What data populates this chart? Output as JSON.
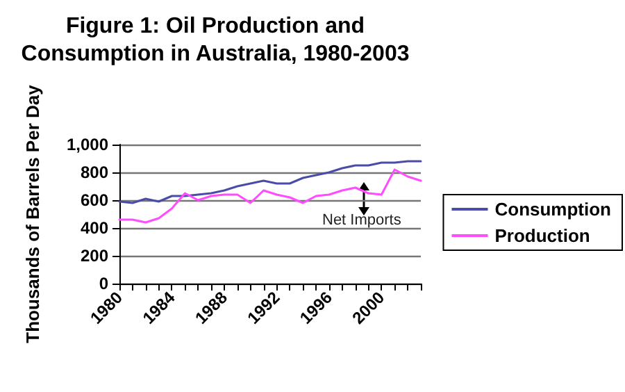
{
  "chart_data": {
    "type": "line",
    "title": "Figure 1: Oil Production and\nConsumption in Australia, 1980-2003",
    "ylabel": "Thousands of Barrels Per Day",
    "categories": [
      "1980",
      null,
      null,
      null,
      "1984",
      null,
      null,
      null,
      "1988",
      null,
      null,
      null,
      "1992",
      null,
      null,
      null,
      "1996",
      null,
      null,
      null,
      "2000",
      null,
      null,
      null
    ],
    "series": [
      {
        "name": "Consumption",
        "color": "#4b4ba8",
        "values": [
          590,
          580,
          610,
          590,
          630,
          630,
          640,
          650,
          670,
          700,
          720,
          740,
          720,
          720,
          760,
          780,
          800,
          830,
          850,
          850,
          870,
          870,
          880,
          880
        ]
      },
      {
        "name": "Production",
        "color": "#ff4cff",
        "values": [
          460,
          460,
          440,
          470,
          540,
          650,
          600,
          630,
          640,
          640,
          580,
          670,
          640,
          620,
          580,
          630,
          640,
          670,
          690,
          650,
          640,
          820,
          770,
          740
        ]
      }
    ],
    "annotations": [
      "Net Imports"
    ],
    "ylim": [
      0,
      1000
    ],
    "yticks": [
      0,
      200,
      400,
      600,
      800,
      {
        "value": 1000,
        "label": "1,000"
      }
    ],
    "grid": "y",
    "legend": "right",
    "marker": "none",
    "line_style": "solid"
  }
}
